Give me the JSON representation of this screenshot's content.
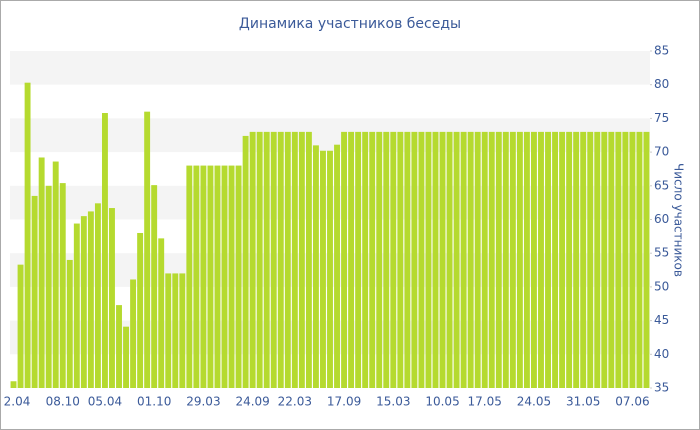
{
  "chart_data": {
    "type": "bar",
    "title": "Динамика участников беседы",
    "y_label": "Число участников",
    "color": "#b5da2f",
    "grid": true,
    "ylim": [
      35,
      85
    ],
    "yticks": [
      35,
      40,
      45,
      50,
      55,
      60,
      65,
      70,
      75,
      80,
      85
    ],
    "categories": [
      "2.04",
      null,
      null,
      null,
      null,
      null,
      null,
      "08.10",
      null,
      null,
      null,
      null,
      null,
      "05.04",
      null,
      null,
      null,
      null,
      null,
      null,
      "01.10",
      null,
      null,
      null,
      null,
      null,
      null,
      "29.03",
      null,
      null,
      null,
      null,
      null,
      null,
      "24.09",
      null,
      null,
      null,
      null,
      null,
      "22.03",
      null,
      null,
      null,
      null,
      null,
      null,
      "17.09",
      null,
      null,
      null,
      null,
      null,
      null,
      "15.03",
      null,
      null,
      null,
      null,
      null,
      null,
      "10.05",
      null,
      null,
      null,
      null,
      null,
      "17.05",
      null,
      null,
      null,
      null,
      null,
      null,
      "24.05",
      null,
      null,
      null,
      null,
      null,
      null,
      "31.05",
      null,
      null,
      null,
      null,
      null,
      null,
      "07.06",
      null,
      null
    ],
    "values": [
      36,
      53.3,
      80.3,
      63.5,
      69.2,
      65,
      68.6,
      65.4,
      54,
      59.4,
      60.5,
      61.2,
      62.4,
      75.8,
      61.7,
      47.3,
      44.1,
      51.1,
      58,
      76,
      65.1,
      57.2,
      52,
      52,
      52,
      68,
      68,
      68,
      68,
      68,
      68,
      68,
      68,
      72.4,
      73,
      73,
      73,
      73,
      73,
      73,
      73,
      73,
      73,
      71,
      70.2,
      70.2,
      71.1,
      73,
      73,
      73,
      73,
      73,
      73,
      73,
      73,
      73,
      73,
      73,
      73,
      73,
      73,
      73,
      73,
      73,
      73,
      73,
      73,
      73,
      73,
      73,
      73,
      73,
      73,
      73,
      73,
      73,
      73,
      73,
      73,
      73,
      73,
      73,
      73,
      73,
      73,
      73,
      73,
      73,
      73,
      73,
      73
    ]
  }
}
